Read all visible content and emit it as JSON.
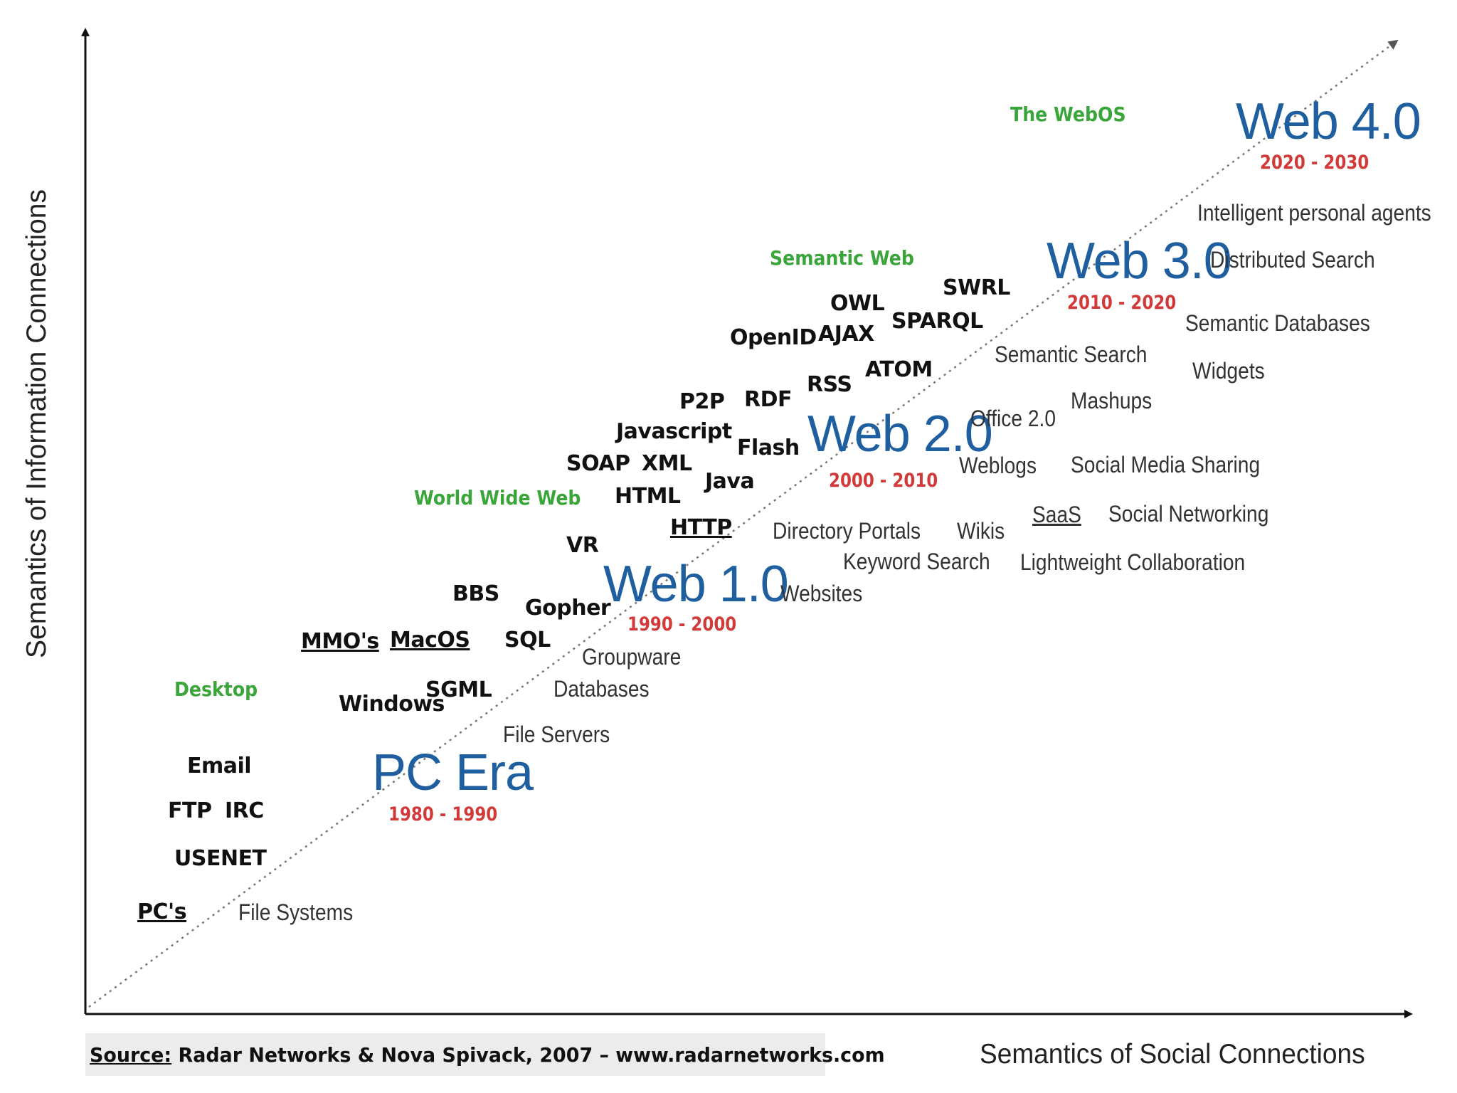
{
  "y_axis_title": "Semantics of Information Connections",
  "x_axis_title": "Semantics of Social Connections",
  "source": {
    "prefix": "Source:",
    "text": " Radar Networks & Nova Spivack, 2007 – www.radarnetworks.com"
  },
  "eras": [
    {
      "name": "PC Era",
      "years": "1980 - 1990"
    },
    {
      "name": "Web 1.0",
      "years": "1990 - 2000"
    },
    {
      "name": "Web 2.0",
      "years": "2000 - 2010"
    },
    {
      "name": "Web 3.0",
      "years": "2010 - 2020"
    },
    {
      "name": "Web 4.0",
      "years": "2020 - 2030"
    }
  ],
  "categories": {
    "desktop": "Desktop",
    "www": "World Wide Web",
    "semantic_web": "Semantic Web",
    "webos": "The WebOS"
  },
  "tech": {
    "email": "Email",
    "ftp": "FTP",
    "irc": "IRC",
    "usenet": "USENET",
    "pcs": "PC's",
    "mmos": "MMO's",
    "macos": "MacOS",
    "windows": "Windows",
    "sgml": "SGML",
    "bbs": "BBS",
    "gopher": "Gopher",
    "sql": "SQL",
    "vr": "VR",
    "soap": "SOAP",
    "xml": "XML",
    "html": "HTML",
    "javascript": "Javascript",
    "java": "Java",
    "http": "HTTP",
    "p2p": "P2P",
    "rdf": "RDF",
    "flash": "Flash",
    "rss": "RSS",
    "openid": "OpenID",
    "ajax": "AJAX",
    "owl": "OWL",
    "sparql": "SPARQL",
    "swrl": "SWRL",
    "atom": "ATOM"
  },
  "apps": {
    "file_systems": "File Systems",
    "file_servers": "File Servers",
    "databases": "Databases",
    "groupware": "Groupware",
    "websites": "Websites",
    "directory_portals": "Directory Portals",
    "keyword_search": "Keyword Search",
    "wikis": "Wikis",
    "weblogs": "Weblogs",
    "office20": "Office 2.0",
    "saas": "SaaS",
    "social_networking": "Social Networking",
    "lightweight_collab": "Lightweight Collaboration",
    "social_media_sharing": "Social Media Sharing",
    "mashups": "Mashups",
    "semantic_search": "Semantic Search",
    "widgets": "Widgets",
    "semantic_databases": "Semantic Databases",
    "distributed_search": "Distributed Search",
    "intelligent_agents": "Intelligent personal agents"
  },
  "colors": {
    "era": "#1f5fa0",
    "years": "#d23a3a",
    "category": "#3aa63a",
    "tech": "#111111",
    "app": "#333333"
  }
}
